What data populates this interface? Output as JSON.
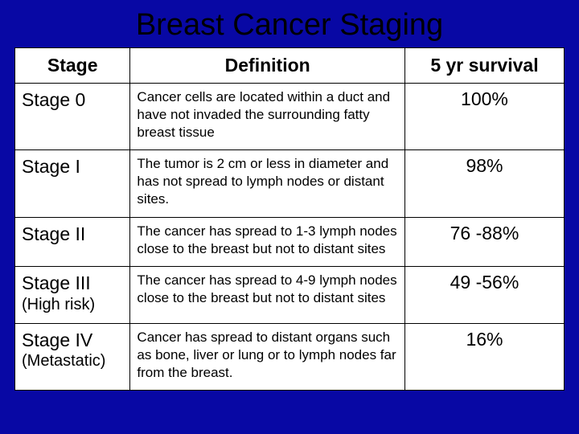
{
  "slide": {
    "title": "Breast Cancer Staging",
    "background_color": "#0808a4",
    "table_background": "#ffffff",
    "border_color": "#000000",
    "text_color": "#000000",
    "title_fontsize": 38,
    "header_fontsize": 23,
    "stage_fontsize": 23,
    "def_fontsize": 17,
    "surv_fontsize": 23
  },
  "table": {
    "columns": [
      "Stage",
      "Definition",
      "5 yr survival"
    ],
    "column_widths_pct": [
      21,
      50,
      29
    ],
    "rows": [
      {
        "stage": "Stage 0",
        "stage_sub": "",
        "definition": "Cancer cells are located within a duct and have not invaded the surrounding fatty breast tissue",
        "survival": "100%"
      },
      {
        "stage": "Stage I",
        "stage_sub": "",
        "definition": "The tumor is 2 cm or less in diameter and has not spread to lymph nodes or distant sites.",
        "survival": "98%"
      },
      {
        "stage": "Stage II",
        "stage_sub": "",
        "definition": "The cancer has spread to 1-3 lymph nodes close to the breast but not to distant sites",
        "survival": "76 -88%"
      },
      {
        "stage": "Stage III",
        "stage_sub": "(High risk)",
        "definition": "The cancer has spread to 4-9 lymph nodes close to the breast but not to distant sites",
        "survival": "49 -56%"
      },
      {
        "stage": "Stage IV",
        "stage_sub": "(Metastatic)",
        "definition": "Cancer has spread to distant organs such as bone, liver or lung or to lymph nodes far from the breast.",
        "survival": "16%"
      }
    ]
  }
}
